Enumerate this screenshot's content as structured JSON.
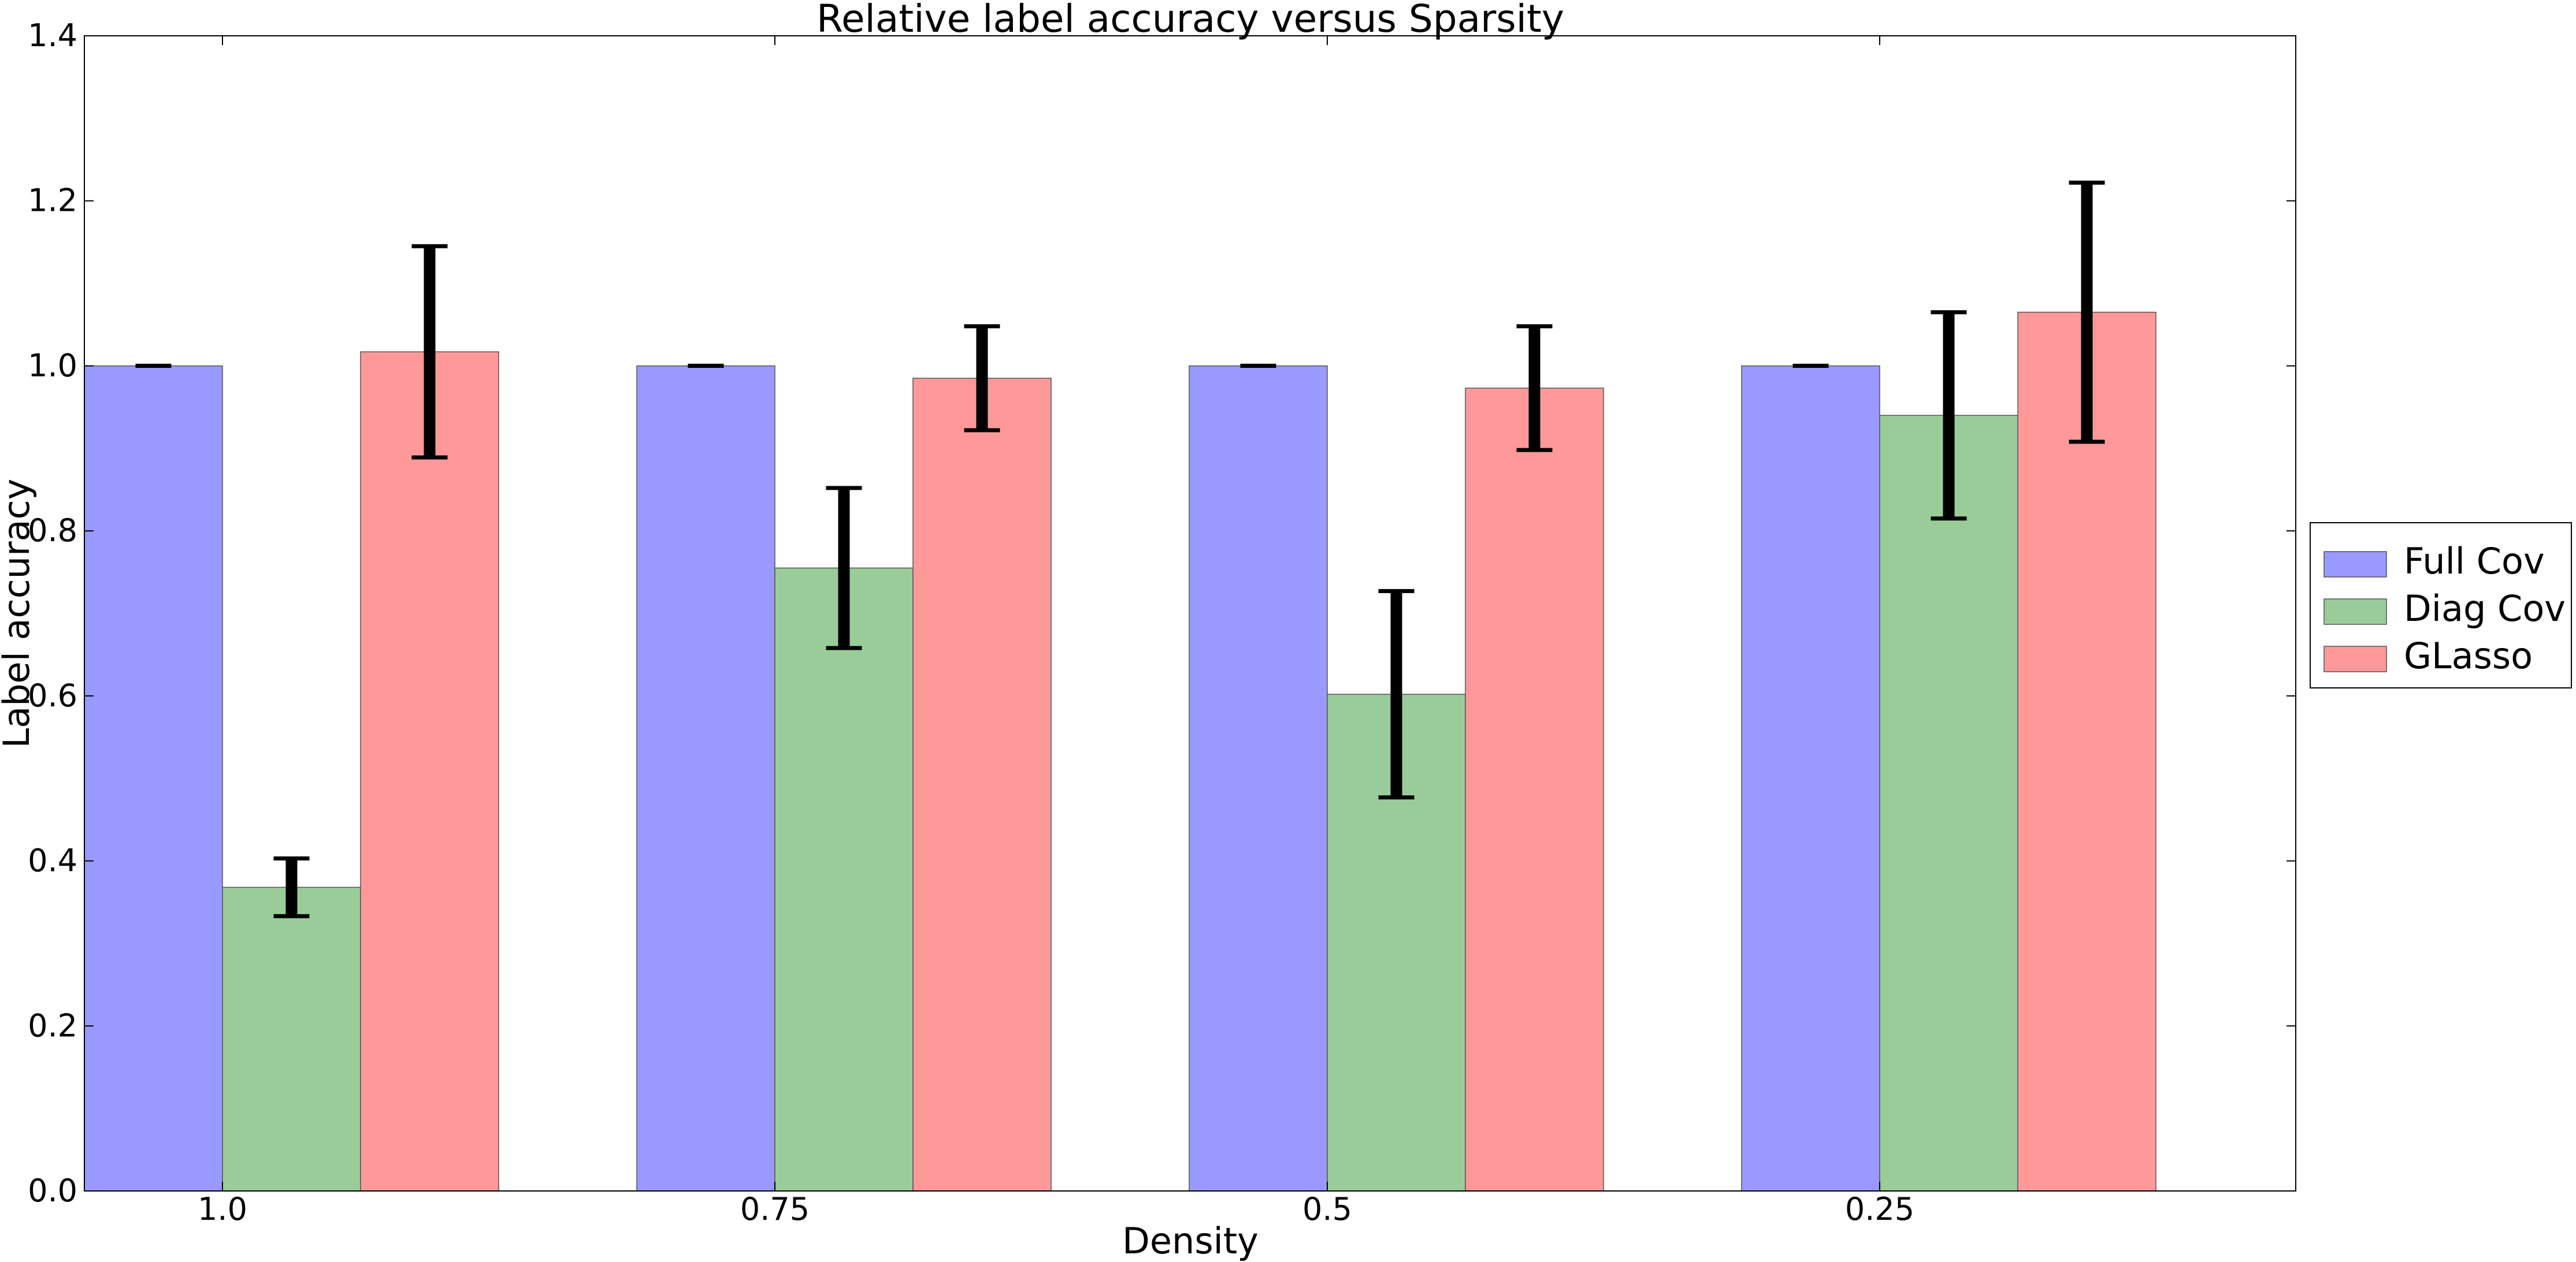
{
  "chart_data": {
    "type": "bar",
    "title": "Relative label accuracy versus Sparsity",
    "xlabel": "Density",
    "ylabel": "Label accuracy",
    "categories": [
      "1.0",
      "0.75",
      "0.5",
      "0.25"
    ],
    "ylim": [
      0.0,
      1.4
    ],
    "yticks": [
      "0.0",
      "0.2",
      "0.4",
      "0.6",
      "0.8",
      "1.0",
      "1.2",
      "1.4"
    ],
    "grid": false,
    "legend_position": "right-outside",
    "series": [
      {
        "name": "Full Cov",
        "color": "#9999ff",
        "values": [
          1.0,
          1.0,
          1.0,
          1.0
        ],
        "errors": [
          0.0,
          0.0,
          0.0,
          0.0
        ]
      },
      {
        "name": "Diag Cov",
        "color": "#99cc99",
        "values": [
          0.368,
          0.755,
          0.602,
          0.94
        ],
        "errors": [
          0.035,
          0.097,
          0.125,
          0.125
        ]
      },
      {
        "name": "GLasso",
        "color": "#ff9999",
        "values": [
          1.017,
          0.985,
          0.973,
          1.065
        ],
        "errors": [
          0.128,
          0.063,
          0.075,
          0.157
        ]
      }
    ]
  }
}
